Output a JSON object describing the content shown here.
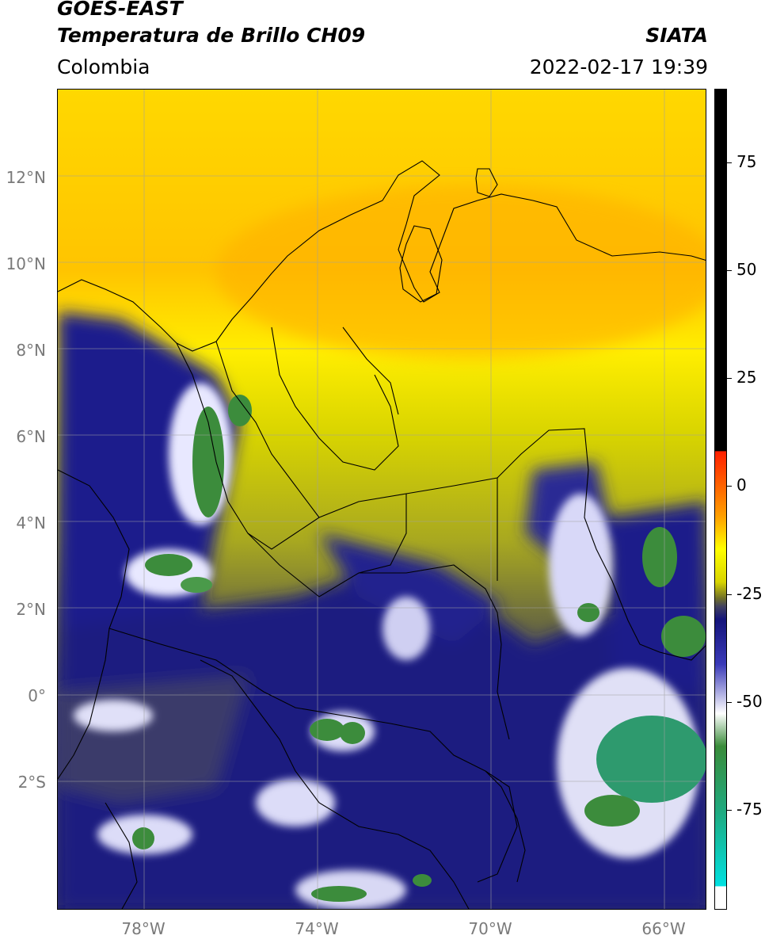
{
  "header": {
    "line1": "GOES-EAST",
    "line2": "Temperatura de Brillo CH09",
    "region": "Colombia",
    "org": "SIATA",
    "datetime": "2022-02-17 19:39"
  },
  "map": {
    "lon_range": [
      -80,
      -65
    ],
    "lat_range": [
      -5,
      14
    ],
    "lat_ticks": [
      {
        "lat": 12,
        "label": "12°N"
      },
      {
        "lat": 10,
        "label": "10°N"
      },
      {
        "lat": 8,
        "label": "8°N"
      },
      {
        "lat": 6,
        "label": "6°N"
      },
      {
        "lat": 4,
        "label": "4°N"
      },
      {
        "lat": 2,
        "label": "2°N"
      },
      {
        "lat": 0,
        "label": "0°"
      },
      {
        "lat": -2,
        "label": "2°S"
      }
    ],
    "lon_ticks": [
      {
        "lon": -78,
        "label": "78°W"
      },
      {
        "lon": -74,
        "label": "74°W"
      },
      {
        "lon": -70,
        "label": "70°W"
      },
      {
        "lon": -66,
        "label": "66°W"
      }
    ],
    "gridlines": true
  },
  "colorbar": {
    "range": [
      -100,
      90
    ],
    "ticks": [
      {
        "value": 75,
        "label": "75"
      },
      {
        "value": 50,
        "label": "50"
      },
      {
        "value": 25,
        "label": "25"
      },
      {
        "value": 0,
        "label": "0"
      },
      {
        "value": -25,
        "label": "-25"
      },
      {
        "value": -50,
        "label": "-50"
      },
      {
        "value": -75,
        "label": "-75"
      }
    ],
    "colors": [
      "#ffffff",
      "#00e0e0",
      "#1faa80",
      "#3a8c3a",
      "#ffffff",
      "#3a3ab8",
      "#14147a",
      "#6e6e2a",
      "#ffff00",
      "#ffa000",
      "#ff2000",
      "#000000"
    ]
  }
}
